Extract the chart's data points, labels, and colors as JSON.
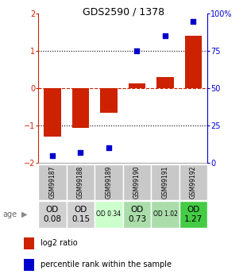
{
  "title": "GDS2590 / 1378",
  "samples": [
    "GSM99187",
    "GSM99188",
    "GSM99189",
    "GSM99190",
    "GSM99191",
    "GSM99192"
  ],
  "log2_ratio": [
    -1.3,
    -1.05,
    -0.65,
    0.13,
    0.3,
    1.4
  ],
  "percentile_rank": [
    5,
    7,
    10,
    75,
    85,
    95
  ],
  "bar_color": "#cc2200",
  "dot_color": "#0000cc",
  "ylim_left": [
    -2,
    2
  ],
  "ylim_right": [
    0,
    100
  ],
  "yticks_left": [
    -2,
    -1,
    0,
    1,
    2
  ],
  "yticks_right": [
    0,
    25,
    50,
    75,
    100
  ],
  "ytick_labels_right": [
    "0",
    "25",
    "50",
    "75",
    "100%"
  ],
  "age_labels": [
    "OD\n0.08",
    "OD\n0.15",
    "OD 0.34",
    "OD\n0.73",
    "OD 1.02",
    "OD\n1.27"
  ],
  "age_label_small": [
    false,
    false,
    true,
    false,
    true,
    false
  ],
  "age_bg_colors": [
    "#d0d0d0",
    "#d0d0d0",
    "#ccffcc",
    "#aaddaa",
    "#aaddaa",
    "#44cc44"
  ],
  "legend_items": [
    {
      "color": "#cc2200",
      "label": "log2 ratio"
    },
    {
      "color": "#0000cc",
      "label": "percentile rank within the sample"
    }
  ],
  "age_row_label": "age",
  "sample_bg": "#c8c8c8",
  "sample_border": "#ffffff"
}
